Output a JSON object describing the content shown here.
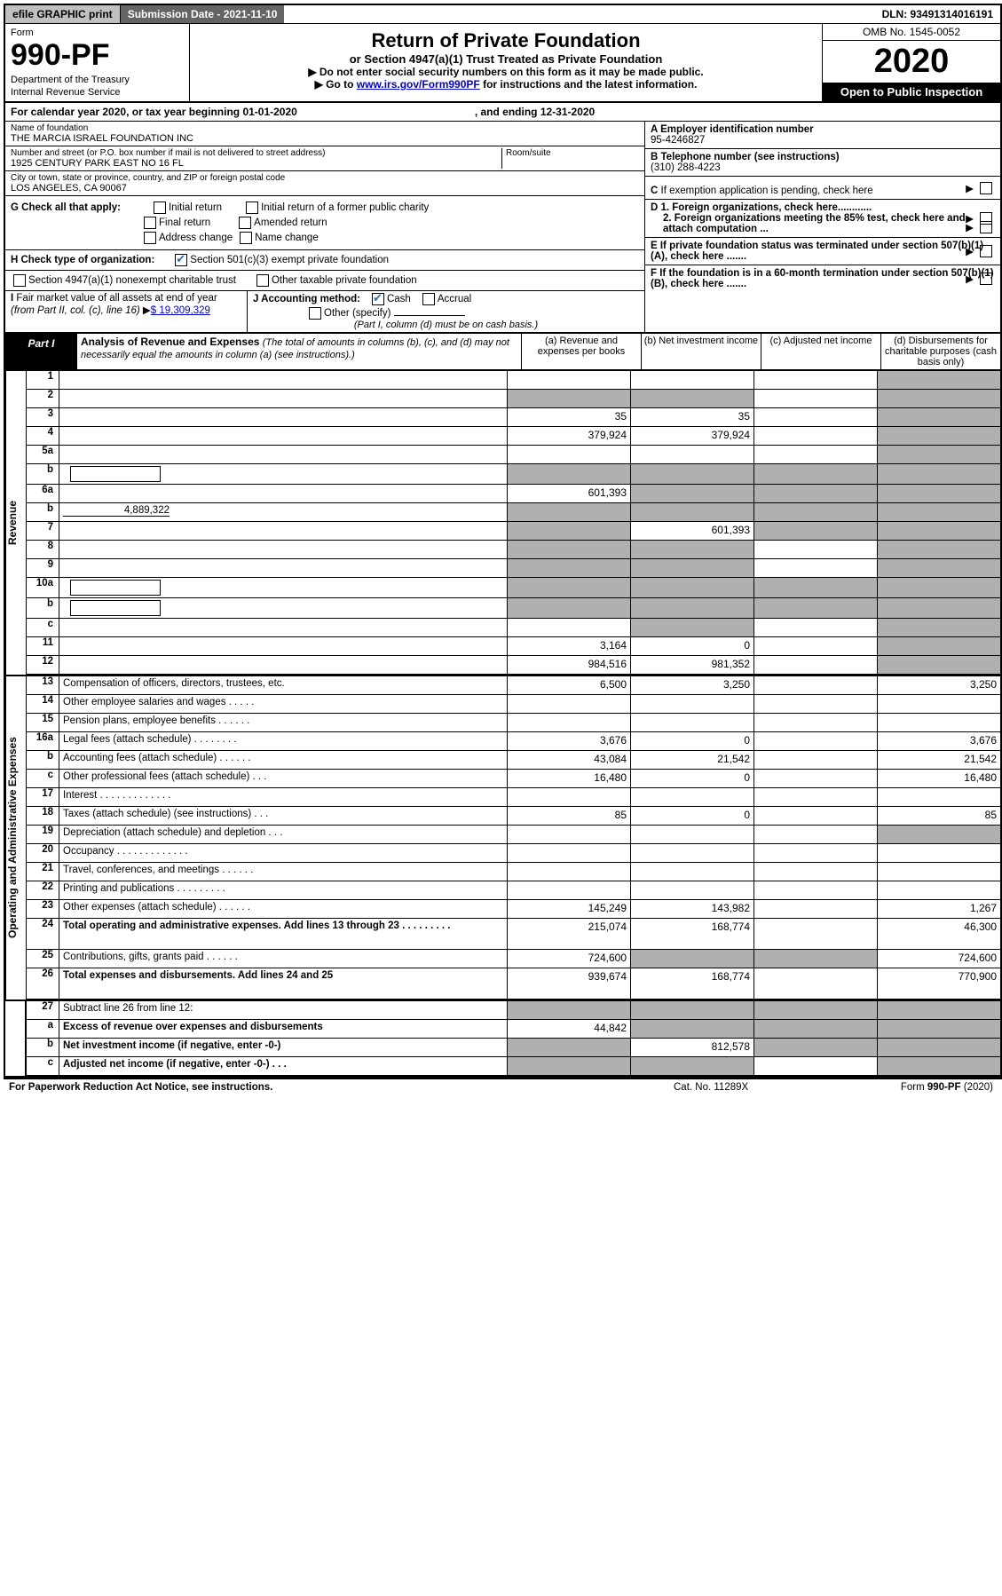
{
  "topbar": {
    "efile": "efile GRAPHIC print",
    "subdate": "Submission Date - 2021-11-10",
    "dln": "DLN: 93491314016191"
  },
  "hdr": {
    "form_word": "Form",
    "form_num": "990-PF",
    "dept": "Department of the Treasury",
    "irs": "Internal Revenue Service",
    "title": "Return of Private Foundation",
    "subtitle": "or Section 4947(a)(1) Trust Treated as Private Foundation",
    "note1": "▶ Do not enter social security numbers on this form as it may be made public.",
    "note2_prefix": "▶ Go to ",
    "note2_link": "www.irs.gov/Form990PF",
    "note2_suffix": " for instructions and the latest information.",
    "omb": "OMB No. 1545-0052",
    "year": "2020",
    "open": "Open to Public Inspection"
  },
  "cal": {
    "prefix": "For calendar year 2020, or tax year beginning 01-01-2020",
    "ending": ", and ending 12-31-2020"
  },
  "info": {
    "name_lab": "Name of foundation",
    "name": "THE MARCIA ISRAEL FOUNDATION INC",
    "addr_lab": "Number and street (or P.O. box number if mail is not delivered to street address)",
    "addr": "1925 CENTURY PARK EAST NO 16 FL",
    "room_lab": "Room/suite",
    "city_lab": "City or town, state or province, country, and ZIP or foreign postal code",
    "city": "LOS ANGELES, CA  90067",
    "a_lab": "A Employer identification number",
    "a_val": "95-4246827",
    "b_lab": "B Telephone number (see instructions)",
    "b_val": "(310) 288-4223",
    "c_lab": "C If exemption application is pending, check here",
    "d1": "D 1. Foreign organizations, check here............",
    "d2": "2. Foreign organizations meeting the 85% test, check here and attach computation ...",
    "e": "E  If private foundation status was terminated under section 507(b)(1)(A), check here .......",
    "f": "F  If the foundation is in a 60-month termination under section 507(b)(1)(B), check here .......",
    "g_lab": "G Check all that apply:",
    "g_opts": [
      "Initial return",
      "Initial return of a former public charity",
      "Final return",
      "Amended return",
      "Address change",
      "Name change"
    ],
    "h_lab": "H Check type of organization:",
    "h1": "Section 501(c)(3) exempt private foundation",
    "h2": "Section 4947(a)(1) nonexempt charitable trust",
    "h3": "Other taxable private foundation",
    "i_lab": "I Fair market value of all assets at end of year (from Part II, col. (c), line 16) ▶",
    "i_val": "$  19,309,329",
    "j_lab": "J Accounting method:",
    "j_opts": [
      "Cash",
      "Accrual"
    ],
    "j_other": "Other (specify)",
    "j_note": "(Part I, column (d) must be on cash basis.)"
  },
  "part1": {
    "label": "Part I",
    "title": "Analysis of Revenue and Expenses",
    "note": "(The total of amounts in columns (b), (c), and (d) may not necessarily equal the amounts in column (a) (see instructions).)",
    "cols": {
      "a": "(a)   Revenue and expenses per books",
      "b": "(b)   Net investment income",
      "c": "(c)   Adjusted net income",
      "d": "(d)   Disbursements for charitable purposes (cash basis only)"
    }
  },
  "sections": {
    "revenue": "Revenue",
    "expenses": "Operating and Administrative Expenses"
  },
  "lines": [
    {
      "n": "1",
      "d": "",
      "a": "",
      "b": "",
      "c": "",
      "dgrey": true
    },
    {
      "n": "2",
      "d": "",
      "a": "",
      "b": "",
      "c": "",
      "na": true,
      "agrey": true,
      "bgrey": true,
      "dgrey": true
    },
    {
      "n": "3",
      "d": "",
      "a": "35",
      "b": "35",
      "c": "",
      "dgrey": true
    },
    {
      "n": "4",
      "d": "",
      "a": "379,924",
      "b": "379,924",
      "c": "",
      "dgrey": true
    },
    {
      "n": "5a",
      "d": "",
      "a": "",
      "b": "",
      "c": "",
      "dgrey": true
    },
    {
      "n": "b",
      "d": "",
      "inset": true,
      "a": "",
      "b": "",
      "c": "",
      "agrey": true,
      "bgrey": true,
      "cgrey": true,
      "dgrey": true
    },
    {
      "n": "6a",
      "d": "",
      "a": "601,393",
      "b": "",
      "c": "",
      "bgrey": true,
      "cgrey": true,
      "dgrey": true
    },
    {
      "n": "b",
      "d": "",
      "underline_val": "4,889,322",
      "a": "",
      "b": "",
      "c": "",
      "agrey": true,
      "bgrey": true,
      "cgrey": true,
      "dgrey": true
    },
    {
      "n": "7",
      "d": "",
      "a": "",
      "b": "601,393",
      "c": "",
      "agrey": true,
      "cgrey": true,
      "dgrey": true
    },
    {
      "n": "8",
      "d": "",
      "a": "",
      "b": "",
      "c": "",
      "agrey": true,
      "bgrey": true,
      "dgrey": true
    },
    {
      "n": "9",
      "d": "",
      "a": "",
      "b": "",
      "c": "",
      "agrey": true,
      "bgrey": true,
      "dgrey": true
    },
    {
      "n": "10a",
      "d": "",
      "inset": true,
      "a": "",
      "b": "",
      "c": "",
      "agrey": true,
      "bgrey": true,
      "cgrey": true,
      "dgrey": true
    },
    {
      "n": "b",
      "d": "",
      "inset": true,
      "a": "",
      "b": "",
      "c": "",
      "agrey": true,
      "bgrey": true,
      "cgrey": true,
      "dgrey": true
    },
    {
      "n": "c",
      "d": "",
      "a": "",
      "b": "",
      "c": "",
      "bgrey": true,
      "dgrey": true
    },
    {
      "n": "11",
      "d": "",
      "a": "3,164",
      "b": "0",
      "c": "",
      "dgrey": true
    },
    {
      "n": "12",
      "d": "",
      "bold": true,
      "a": "984,516",
      "b": "981,352",
      "c": "",
      "dgrey": true
    }
  ],
  "explines": [
    {
      "n": "13",
      "d": "Compensation of officers, directors, trustees, etc.",
      "a": "6,500",
      "b": "3,250",
      "c": "",
      "dd": "3,250"
    },
    {
      "n": "14",
      "d": "Other employee salaries and wages   .   .   .   .   .",
      "a": "",
      "b": "",
      "c": "",
      "dd": ""
    },
    {
      "n": "15",
      "d": "Pension plans, employee benefits   .   .   .   .   .   .",
      "a": "",
      "b": "",
      "c": "",
      "dd": ""
    },
    {
      "n": "16a",
      "d": "Legal fees (attach schedule)  .   .   .   .   .   .   .   .",
      "a": "3,676",
      "b": "0",
      "c": "",
      "dd": "3,676"
    },
    {
      "n": "b",
      "d": "Accounting fees (attach schedule)  .   .   .   .   .   .",
      "a": "43,084",
      "b": "21,542",
      "c": "",
      "dd": "21,542"
    },
    {
      "n": "c",
      "d": "Other professional fees (attach schedule)   .   .   .",
      "a": "16,480",
      "b": "0",
      "c": "",
      "dd": "16,480"
    },
    {
      "n": "17",
      "d": "Interest   .   .   .   .   .   .   .   .   .   .   .   .   .",
      "a": "",
      "b": "",
      "c": "",
      "dd": ""
    },
    {
      "n": "18",
      "d": "Taxes (attach schedule) (see instructions)   .   .   .",
      "a": "85",
      "b": "0",
      "c": "",
      "dd": "85"
    },
    {
      "n": "19",
      "d": "Depreciation (attach schedule) and depletion   .   .   .",
      "a": "",
      "b": "",
      "c": "",
      "dd": "",
      "ddgrey": true
    },
    {
      "n": "20",
      "d": "Occupancy   .   .   .   .   .   .   .   .   .   .   .   .   .",
      "a": "",
      "b": "",
      "c": "",
      "dd": ""
    },
    {
      "n": "21",
      "d": "Travel, conferences, and meetings   .   .   .   .   .   .",
      "a": "",
      "b": "",
      "c": "",
      "dd": ""
    },
    {
      "n": "22",
      "d": "Printing and publications   .   .   .   .   .   .   .   .   .",
      "a": "",
      "b": "",
      "c": "",
      "dd": ""
    },
    {
      "n": "23",
      "d": "Other expenses (attach schedule)   .   .   .   .   .   .",
      "a": "145,249",
      "b": "143,982",
      "c": "",
      "dd": "1,267"
    },
    {
      "n": "24",
      "d": "Total operating and administrative expenses. Add lines 13 through 23   .   .   .   .   .   .   .   .   .",
      "bold": true,
      "tall": true,
      "a": "215,074",
      "b": "168,774",
      "c": "",
      "dd": "46,300"
    },
    {
      "n": "25",
      "d": "Contributions, gifts, grants paid   .   .   .   .   .   .",
      "a": "724,600",
      "b": "",
      "c": "",
      "dd": "724,600",
      "bgrey": true,
      "cgrey": true
    },
    {
      "n": "26",
      "d": "Total expenses and disbursements. Add lines 24 and 25",
      "bold": true,
      "tall": true,
      "a": "939,674",
      "b": "168,774",
      "c": "",
      "dd": "770,900"
    }
  ],
  "netlines": [
    {
      "n": "27",
      "d": "Subtract line 26 from line 12:",
      "a": "",
      "b": "",
      "c": "",
      "dd": "",
      "agrey": true,
      "bgrey": true,
      "cgrey": true,
      "ddgrey": true
    },
    {
      "n": "a",
      "d": "Excess of revenue over expenses and disbursements",
      "bold": true,
      "a": "44,842",
      "b": "",
      "c": "",
      "dd": "",
      "bgrey": true,
      "cgrey": true,
      "ddgrey": true
    },
    {
      "n": "b",
      "d": "Net investment income (if negative, enter -0-)",
      "bold": true,
      "a": "",
      "b": "812,578",
      "c": "",
      "dd": "",
      "agrey": true,
      "cgrey": true,
      "ddgrey": true
    },
    {
      "n": "c",
      "d": "Adjusted net income (if negative, enter -0-)   .   .   .",
      "bold": true,
      "a": "",
      "b": "",
      "c": "",
      "dd": "",
      "agrey": true,
      "bgrey": true,
      "ddgrey": true
    }
  ],
  "foot": {
    "l": "For Paperwork Reduction Act Notice, see instructions.",
    "c": "Cat. No. 11289X",
    "r": "Form 990-PF (2020)"
  }
}
